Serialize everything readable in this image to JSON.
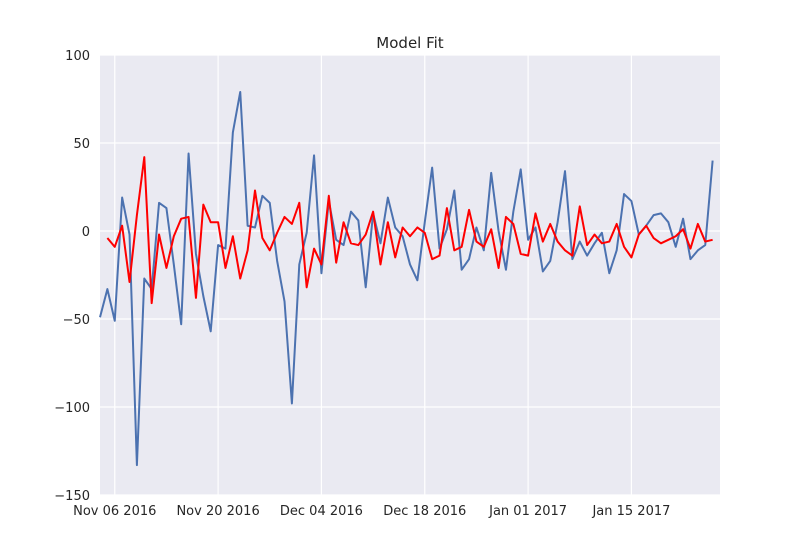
{
  "chart_data": {
    "type": "line",
    "title": "Model Fit",
    "xlabel": "",
    "ylabel": "",
    "x_start": "2016-11-04",
    "x_end": "2017-01-27",
    "ylim": [
      -150,
      100
    ],
    "x_ticks": [
      {
        "date": "2016-11-06",
        "label": "Nov 06 2016"
      },
      {
        "date": "2016-11-20",
        "label": "Nov 20 2016"
      },
      {
        "date": "2016-12-04",
        "label": "Dec 04 2016"
      },
      {
        "date": "2016-12-18",
        "label": "Dec 18 2016"
      },
      {
        "date": "2017-01-01",
        "label": "Jan 01 2017"
      },
      {
        "date": "2017-01-15",
        "label": "Jan 15 2017"
      }
    ],
    "y_ticks": [
      {
        "value": 100,
        "label": "100"
      },
      {
        "value": 50,
        "label": "50"
      },
      {
        "value": 0,
        "label": "0"
      },
      {
        "value": -50,
        "label": "−50"
      },
      {
        "value": -100,
        "label": "−100"
      },
      {
        "value": -150,
        "label": "−150"
      }
    ],
    "grid": true,
    "background": "#eaeaf2",
    "series": [
      {
        "color": "#4c72b0",
        "start": "2016-11-04",
        "values": [
          -49,
          -33,
          -51,
          19,
          -2,
          -133,
          -27,
          -33,
          16,
          13,
          -19,
          -53,
          44,
          -13,
          -37,
          -57,
          -8,
          -10,
          56,
          79,
          3,
          2,
          20,
          16,
          -17,
          -40,
          -98,
          -19,
          -1,
          43,
          -24,
          17,
          -5,
          -8,
          11,
          6,
          -32,
          10,
          -7,
          19,
          2,
          -3,
          -19,
          -28,
          5,
          36,
          -10,
          1,
          23,
          -22,
          -16,
          2,
          -11,
          33,
          0,
          -22,
          11,
          35,
          -5,
          2,
          -23,
          -17,
          5,
          34,
          -16,
          -6,
          -14,
          -7,
          -1,
          -24,
          -11,
          21,
          17,
          -2,
          3,
          9,
          10,
          5,
          -9,
          7,
          -16,
          -11,
          -8,
          40
        ]
      },
      {
        "color": "#ff0000",
        "start": "2016-11-05",
        "values": [
          -4,
          -9,
          3,
          -29,
          9,
          42,
          -41,
          -2,
          -21,
          -3,
          7,
          8,
          -38,
          15,
          5,
          5,
          -21,
          -3,
          -27,
          -11,
          23,
          -4,
          -11,
          -1,
          8,
          4,
          16,
          -32,
          -10,
          -19,
          20,
          -18,
          5,
          -7,
          -8,
          -2,
          11,
          -19,
          5,
          -15,
          2,
          -3,
          2,
          -1,
          -16,
          -14,
          13,
          -11,
          -9,
          12,
          -6,
          -9,
          1,
          -21,
          8,
          4,
          -13,
          -14,
          10,
          -6,
          4,
          -6,
          -11,
          -14,
          14,
          -8,
          -2,
          -7,
          -6,
          4,
          -9,
          -15,
          -2,
          3,
          -4,
          -7,
          -5,
          -3,
          1,
          -10,
          4,
          -6,
          -5
        ]
      }
    ]
  }
}
